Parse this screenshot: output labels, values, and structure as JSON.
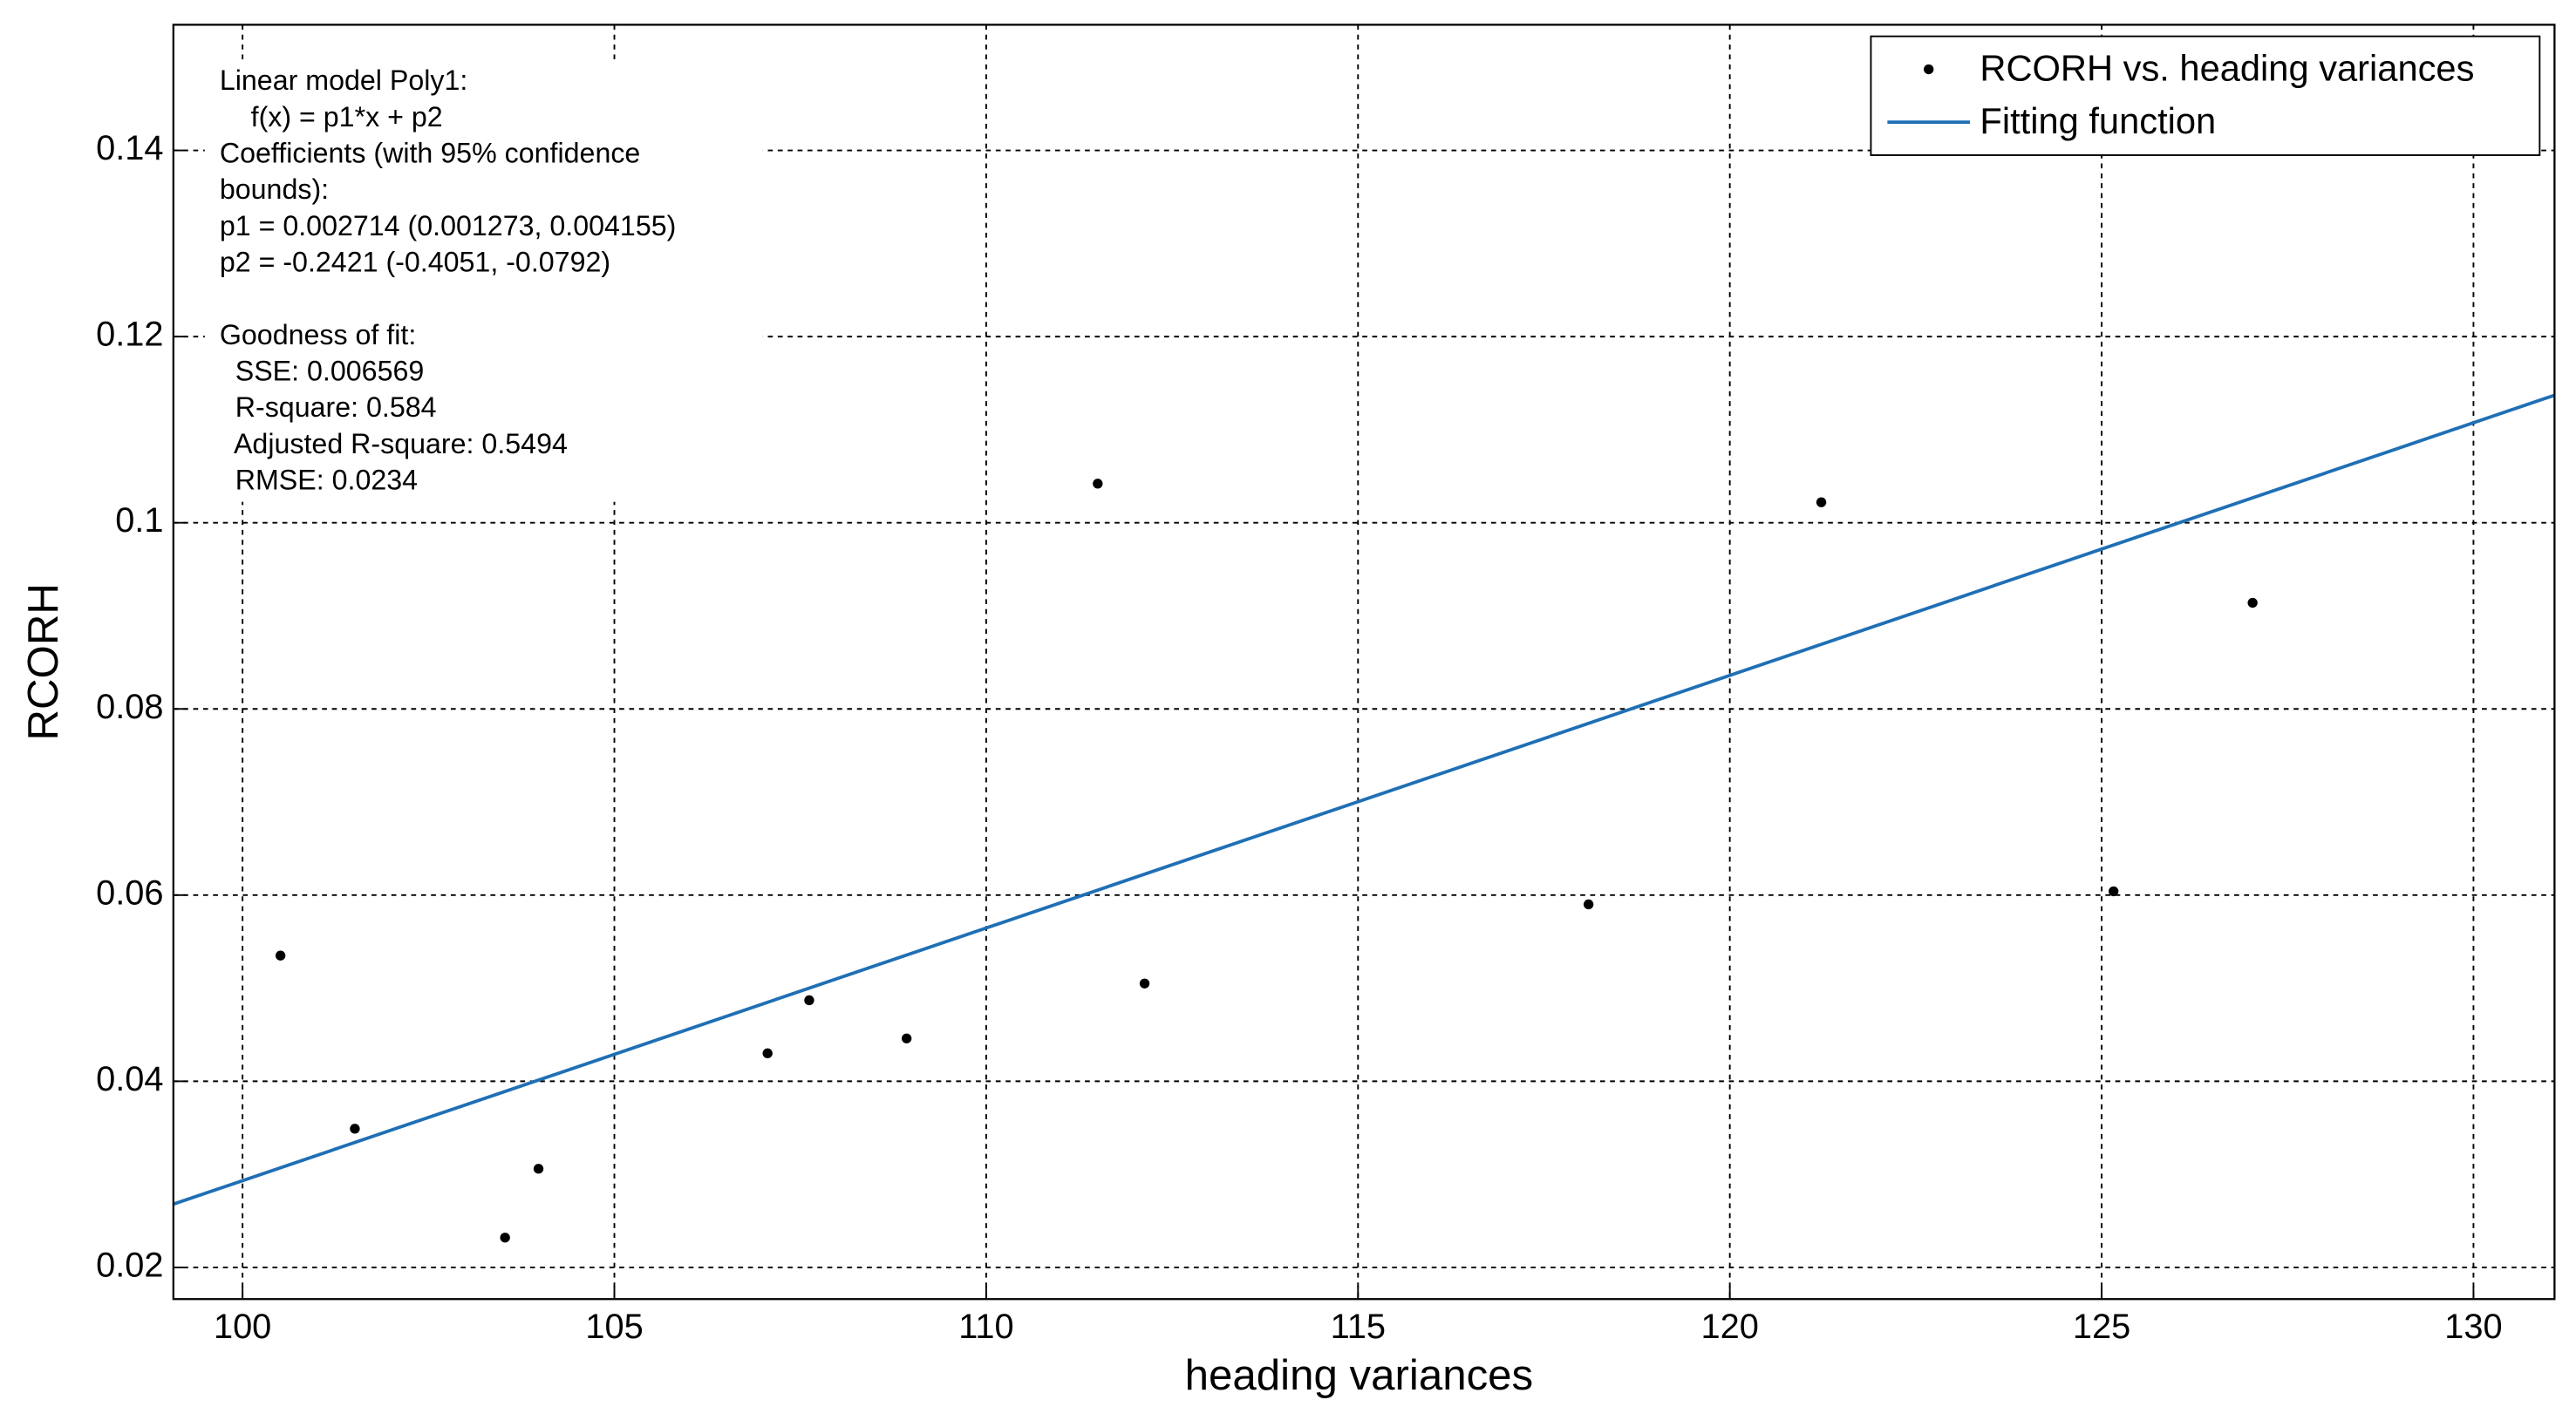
{
  "chart_data": {
    "type": "scatter",
    "xlabel": "heading variances",
    "ylabel": "RCORH",
    "xlim": [
      99.07,
      131.09
    ],
    "ylim": [
      0.0166,
      0.1535
    ],
    "xticks": [
      100,
      105,
      110,
      115,
      120,
      125,
      130
    ],
    "yticks": [
      0.02,
      0.04,
      0.06,
      0.08,
      0.1,
      0.12,
      0.14
    ],
    "grid": true,
    "legend": "upper right",
    "series": [
      {
        "name": "RCORH vs. heading variances",
        "color": "#000000",
        "x": [
          100.51,
          101.51,
          103.53,
          103.98,
          107.06,
          107.62,
          108.93,
          111.5,
          112.13,
          118.1,
          121.23,
          125.16,
          127.03
        ],
        "values": [
          0.0535,
          0.0349,
          0.0232,
          0.0306,
          0.043,
          0.0487,
          0.0446,
          0.1042,
          0.0505,
          0.059,
          0.1022,
          0.0604,
          0.0914
        ]
      },
      {
        "name": "Fitting function",
        "type": "line",
        "color": "#1f6fb5",
        "x": [
          99.07,
          131.09
        ],
        "values": [
          0.0268,
          0.1137
        ]
      }
    ],
    "fit_info": [
      "Linear model Poly1:",
      "    f(x) = p1*x + p2",
      "Coefficients (with 95% confidence",
      "bounds):",
      "p1 = 0.002714 (0.001273, 0.004155)",
      "p2 = -0.2421 (-0.4051, -0.0792)"
    ],
    "goodness_of_fit": [
      "Goodness of fit:",
      "  SSE: 0.006569",
      "  R-square: 0.584",
      "  Adjusted R-square: 0.5494",
      "  RMSE: 0.0234"
    ]
  }
}
